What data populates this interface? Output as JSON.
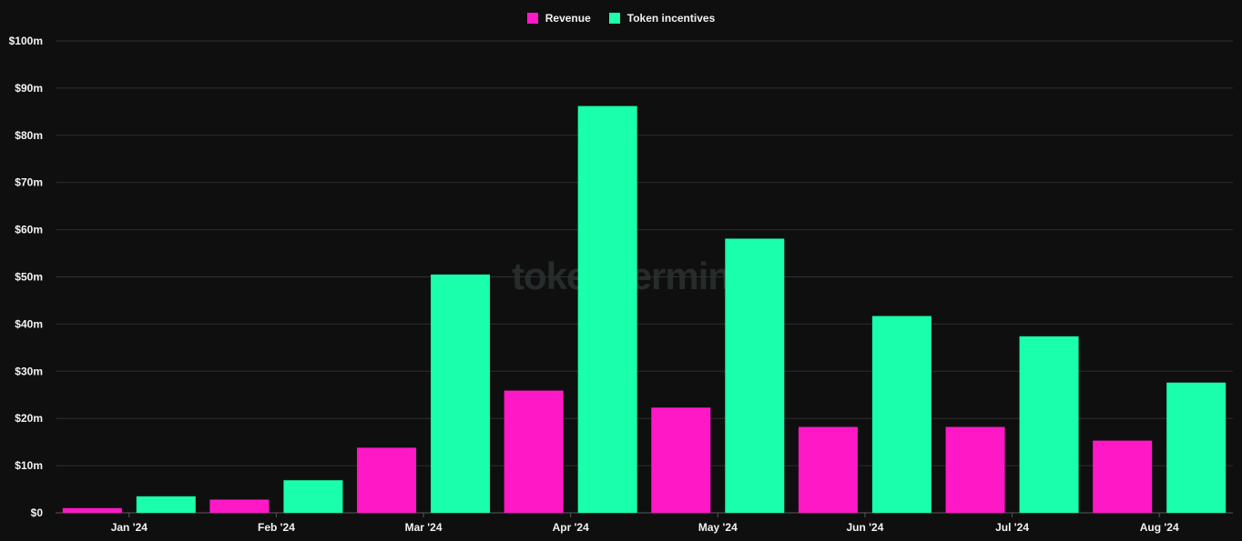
{
  "legend": {
    "items": [
      {
        "label": "Revenue",
        "color": "#ff19c6"
      },
      {
        "label": "Token incentives",
        "color": "#19ffac"
      }
    ]
  },
  "watermark": "token terminal_",
  "chart_data": {
    "type": "bar",
    "categories": [
      "Jan '24",
      "Feb '24",
      "Mar '24",
      "Apr '24",
      "May '24",
      "Jun '24",
      "Jul '24",
      "Aug '24"
    ],
    "series": [
      {
        "name": "Revenue",
        "color": "#ff19c6",
        "values": [
          1.0,
          2.8,
          13.8,
          25.9,
          22.3,
          18.2,
          18.2,
          15.3
        ]
      },
      {
        "name": "Token incentives",
        "color": "#19ffac",
        "values": [
          3.5,
          6.9,
          50.5,
          86.2,
          58.1,
          41.7,
          37.4,
          27.6
        ]
      }
    ],
    "ylim": [
      0,
      100
    ],
    "yticks": [
      0,
      10,
      20,
      30,
      40,
      50,
      60,
      70,
      80,
      90,
      100
    ],
    "ytick_labels": [
      "$0",
      "$10m",
      "$20m",
      "$30m",
      "$40m",
      "$50m",
      "$60m",
      "$70m",
      "$80m",
      "$90m",
      "$100m"
    ],
    "grid": true,
    "legend_position": "top-center"
  }
}
